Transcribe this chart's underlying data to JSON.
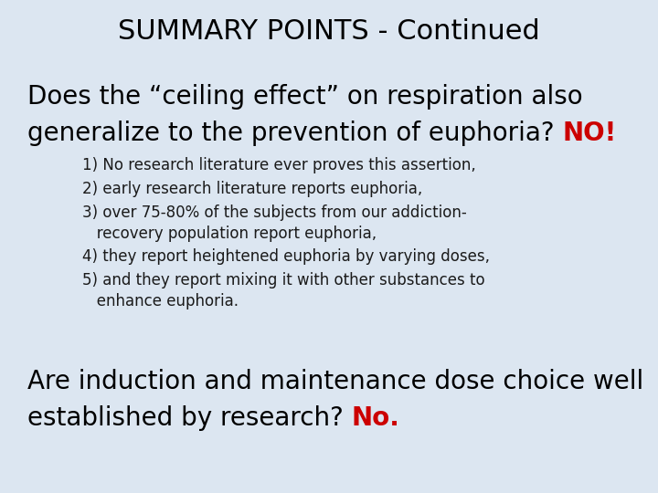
{
  "background_color": "#dce6f1",
  "title": "SUMMARY POINTS - Continued",
  "title_fontsize": 22,
  "title_color": "#000000",
  "q1_line1": "Does the “ceiling effect” on respiration also",
  "q1_line2_black": "generalize to the prevention of euphoria? ",
  "q1_red": "NO!",
  "q1_fontsize": 20,
  "bullet_lines": [
    "1) No research literature ever proves this assertion,",
    "2) early research literature reports euphoria,",
    "3) over 75-80% of the subjects from our addiction-\n   recovery population report euphoria,",
    "4) they report heightened euphoria by varying doses,",
    "5) and they report mixing it with other substances to\n   enhance euphoria."
  ],
  "bullet_fontsize": 12,
  "bullet_color": "#1a1a1a",
  "q2_line1": "Are induction and maintenance dose choice well",
  "q2_line2_black": "established by research? ",
  "q2_red": "No.",
  "q2_fontsize": 20,
  "text_color": "#000000",
  "red_color": "#cc0000",
  "fig_width": 7.2,
  "fig_height": 5.4,
  "dpi": 100
}
